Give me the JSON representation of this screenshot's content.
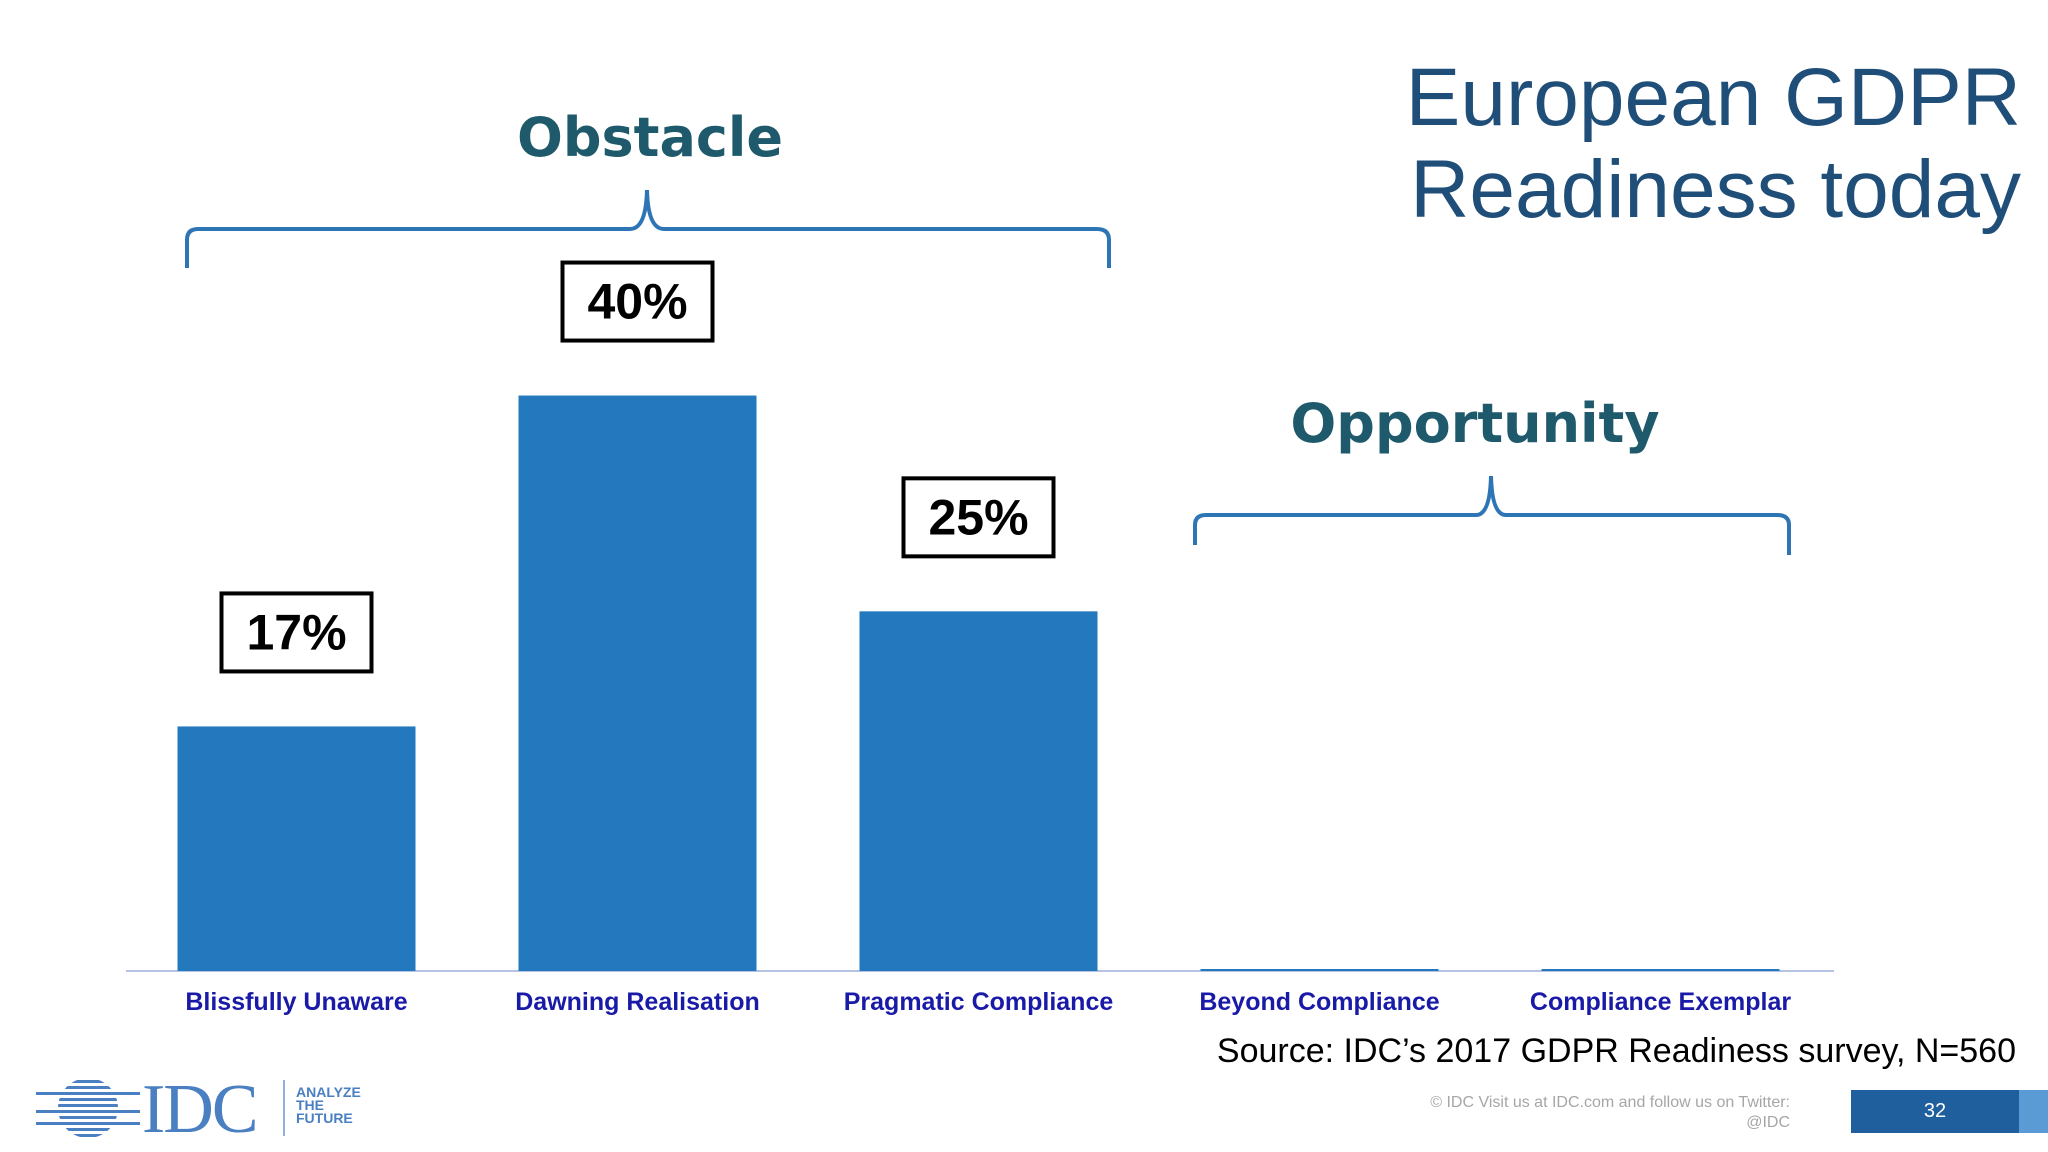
{
  "slide": {
    "title_line1": "European GDPR",
    "title_line2": "Readiness today",
    "source": "Source: IDC’s 2017 GDPR Readiness survey, N=560",
    "footer_note_line1": "© IDC   Visit us at IDC.com and follow us on Twitter:",
    "footer_note_line2": "@IDC",
    "page_number": "32",
    "logo": {
      "text": "IDC",
      "tag_line1": "ANALYZE",
      "tag_line2": "THE",
      "tag_line3": "FUTURE"
    },
    "groups": {
      "obstacle": "Obstacle",
      "opportunity": "Opportunity"
    }
  },
  "colors": {
    "bar": "#2479be",
    "title": "#1f4e79",
    "group_label": "#1e5a6b",
    "category_label": "#1a1aa8",
    "bracket": "#2e75b6"
  },
  "chart_data": {
    "type": "bar",
    "title": "European GDPR Readiness today",
    "categories": [
      "Blissfully Unaware",
      "Dawning Realisation",
      "Pragmatic Compliance",
      "Beyond Compliance",
      "Compliance Exemplar"
    ],
    "values": [
      17,
      40,
      25,
      0,
      0
    ],
    "data_labels": [
      "17%",
      "40%",
      "25%",
      "",
      ""
    ],
    "unit": "%",
    "ylim": [
      0,
      44
    ],
    "grid": false,
    "legend": "none"
  }
}
